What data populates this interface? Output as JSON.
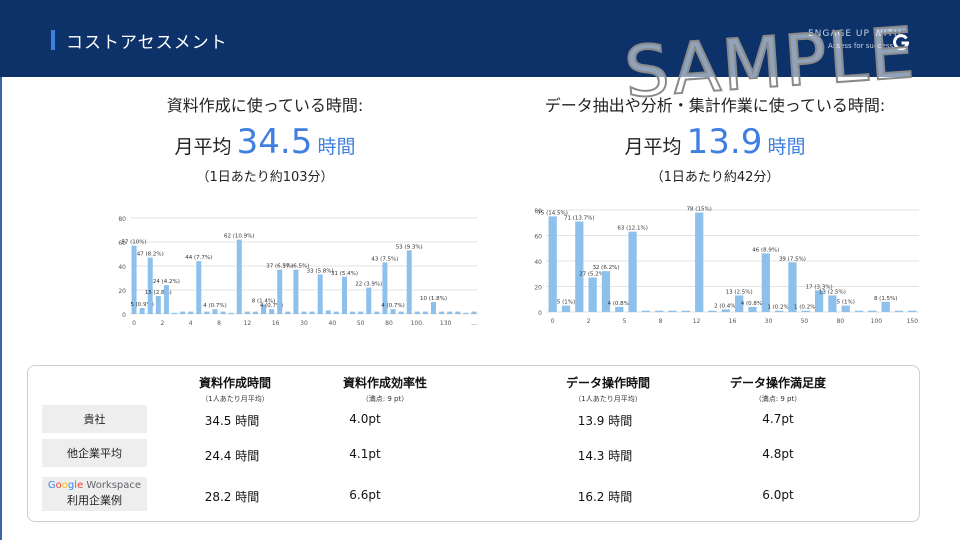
{
  "header": {
    "title": "コストアセスメント",
    "brand_line1": "ENGAGE UP WITH",
    "brand_line2": "Assess for success",
    "logo_icon": "g-logo-icon"
  },
  "watermark": "SAMPLE",
  "stats": [
    {
      "label": "資料作成に使っている時間:",
      "prefix": "月平均",
      "value": "34.5",
      "unit": "時間",
      "sub": "（1日あたり約103分）"
    },
    {
      "label": "データ抽出や分析・集計作業に使っている時間:",
      "prefix": "月平均",
      "value": "13.9",
      "unit": "時間",
      "sub": "（1日あたり約42分）"
    }
  ],
  "chart_data": [
    {
      "type": "bar",
      "ylim": [
        0,
        80
      ],
      "yticks": [
        "0",
        "20",
        "40",
        "60",
        "80"
      ],
      "xticks": [
        "0",
        "2",
        "4",
        "8",
        "12",
        "16",
        "30",
        "40",
        "50",
        "80",
        "100.",
        "130",
        "..."
      ],
      "values": [
        57,
        5,
        47,
        15,
        24,
        1,
        2,
        2,
        44,
        2,
        4,
        2,
        1,
        62,
        2,
        2,
        8,
        4,
        37,
        2,
        37,
        2,
        2,
        33,
        3,
        2,
        31,
        2,
        2,
        22,
        2,
        43,
        4,
        2,
        53,
        2,
        2,
        10,
        2,
        2,
        2,
        1,
        2
      ],
      "labels": [
        "57 (10%)",
        "5 (0.9%)",
        "47 (8.2%)",
        "15 (2.8%)",
        "24 (4.2%)",
        "",
        "",
        "",
        "44 (7.7%)",
        "",
        "4 (0.7%)",
        "",
        "",
        "62 (10.9%)",
        "",
        "",
        "8 (1.4%)",
        "4 (0.7%)",
        "37 (6.5%)",
        "",
        "37 (6.5%)",
        "",
        "",
        "33 (5.8%)",
        "",
        "",
        "31 (5.4%)",
        "",
        "",
        "22 (3.9%)",
        "",
        "43 (7.5%)",
        "4 (0.7%)",
        "",
        "53 (9.3%)",
        "",
        "",
        "10 (1.8%)",
        "",
        "",
        "",
        "",
        ""
      ],
      "color": "#8ec0ec"
    },
    {
      "type": "bar",
      "ylim": [
        0,
        80
      ],
      "yticks": [
        "0",
        "20",
        "40",
        "60",
        "80"
      ],
      "xticks": [
        "0",
        "2",
        "5",
        "8",
        "12",
        "16",
        "30",
        "50",
        "80",
        "100",
        "150"
      ],
      "values": [
        75,
        5,
        71,
        27,
        32,
        4,
        63,
        1,
        1,
        1,
        1,
        78,
        1,
        2,
        13,
        4,
        46,
        1,
        39,
        1,
        17,
        13,
        5,
        1,
        1,
        8,
        1,
        1
      ],
      "labels": [
        "75 (14.5%)",
        "5 (1%)",
        "71 (13.7%)",
        "27 (5.2%)",
        "32 (6.2%)",
        "4 (0.8%)",
        "63 (12.1%)",
        "",
        "",
        "",
        "",
        "78 (15%)",
        "",
        "2 (0.4%)",
        "13 (2.5%)",
        "4 (0.8%)",
        "46 (8.9%)",
        "1 (0.2%)",
        "39 (7.5%)",
        "1 (0.2%)",
        "17 (3.3%)",
        "13 (2.5%)",
        "5 (1%)",
        "",
        "",
        "8 (1.5%)",
        "",
        ""
      ],
      "color": "#8ec0ec"
    }
  ],
  "table": {
    "columns": [
      {
        "title": "資料作成時間",
        "sub": "（1人あたり月平均）"
      },
      {
        "title": "資料作成効率性",
        "sub": "（満点: 9 pt）"
      },
      {
        "title": "データ操作時間",
        "sub": "（1人あたり月平均）"
      },
      {
        "title": "データ操作満足度",
        "sub": "（満点: 9 pt）"
      }
    ],
    "rows": [
      {
        "label": "貴社",
        "cells": [
          "34.5 時間",
          "4.0pt",
          "13.9 時間",
          "4.7pt"
        ]
      },
      {
        "label": "他企業平均",
        "cells": [
          "24.4 時間",
          "4.1pt",
          "14.3 時間",
          "4.8pt"
        ]
      },
      {
        "label": "利用企業例",
        "logo_text": [
          "G",
          "o",
          "o",
          "g",
          "l",
          "e",
          " Workspace"
        ],
        "cells": [
          "28.2 時間",
          "6.6pt",
          "16.2 時間",
          "6.0pt"
        ]
      }
    ]
  }
}
